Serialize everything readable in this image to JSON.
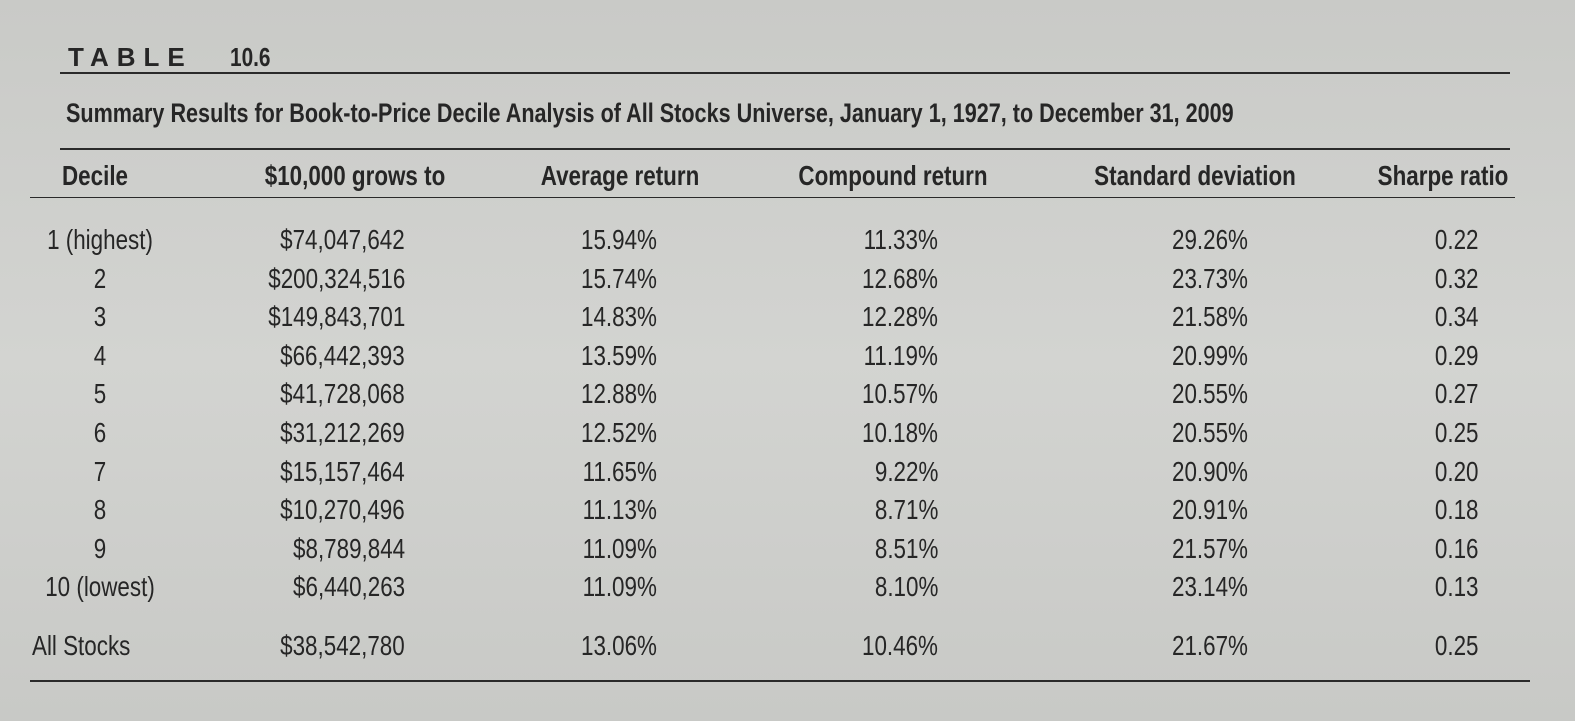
{
  "table": {
    "label": "TABLE",
    "number": "10.6",
    "title": "Summary Results for Book-to-Price Decile Analysis of All Stocks Universe, January 1, 1927, to December 31, 2009",
    "columns": [
      "Decile",
      "$10,000 grows to",
      "Average return",
      "Compound return",
      "Standard deviation",
      "Sharpe ratio"
    ],
    "rows": [
      [
        "1 (highest)",
        "$74,047,642",
        "15.94%",
        "11.33%",
        "29.26%",
        "0.22"
      ],
      [
        "2",
        "$200,324,516",
        "15.74%",
        "12.68%",
        "23.73%",
        "0.32"
      ],
      [
        "3",
        "$149,843,701",
        "14.83%",
        "12.28%",
        "21.58%",
        "0.34"
      ],
      [
        "4",
        "$66,442,393",
        "13.59%",
        "11.19%",
        "20.99%",
        "0.29"
      ],
      [
        "5",
        "$41,728,068",
        "12.88%",
        "10.57%",
        "20.55%",
        "0.27"
      ],
      [
        "6",
        "$31,212,269",
        "12.52%",
        "10.18%",
        "20.55%",
        "0.25"
      ],
      [
        "7",
        "$15,157,464",
        "11.65%",
        "9.22%",
        "20.90%",
        "0.20"
      ],
      [
        "8",
        "$10,270,496",
        "11.13%",
        "8.71%",
        "20.91%",
        "0.18"
      ],
      [
        "9",
        "$8,789,844",
        "11.09%",
        "8.51%",
        "21.57%",
        "0.16"
      ],
      [
        "10 (lowest)",
        "$6,440,263",
        "11.09%",
        "8.10%",
        "23.14%",
        "0.13"
      ]
    ],
    "total": [
      "All Stocks",
      "$38,542,780",
      "13.06%",
      "10.46%",
      "21.67%",
      "0.25"
    ]
  }
}
